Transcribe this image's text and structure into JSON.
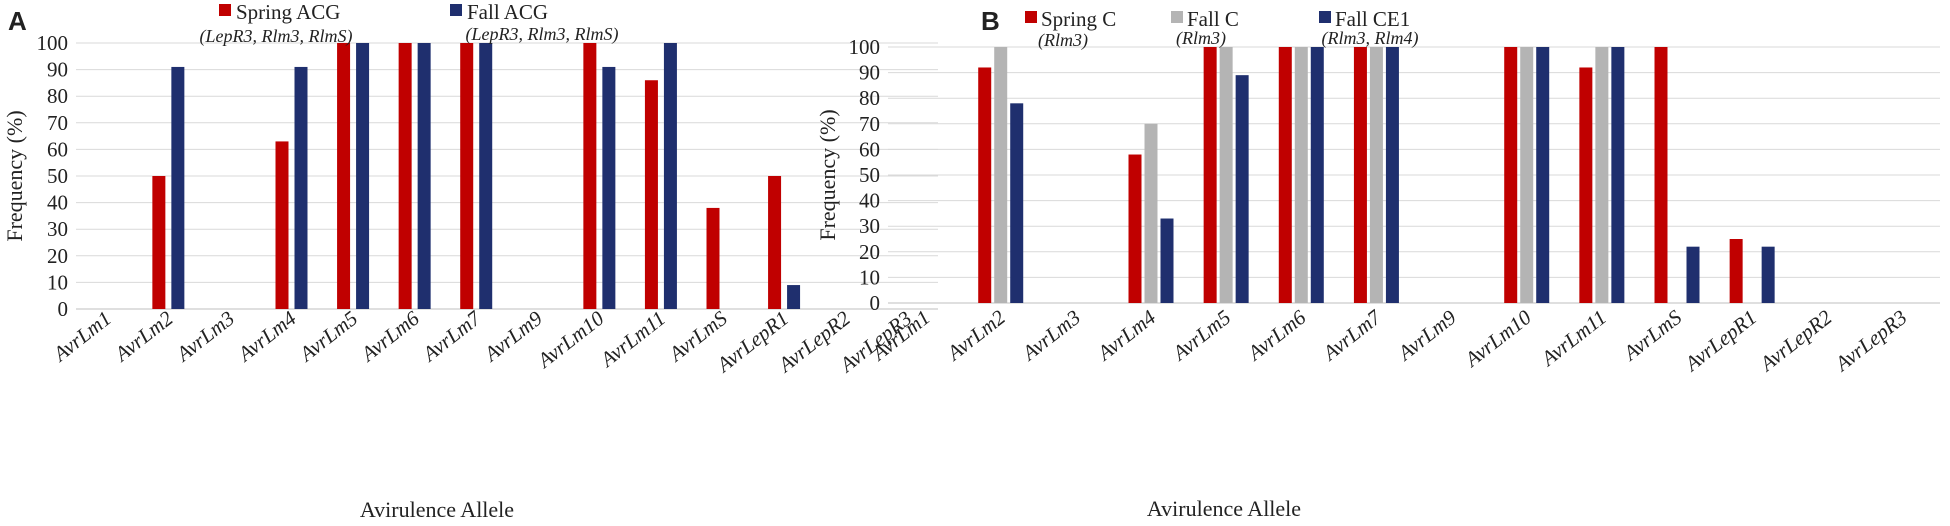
{
  "colors": {
    "spring": "#c00000",
    "fall": "#1f2f6e",
    "fall_c": "#b4b4b4",
    "grid": "#d9d9d9",
    "axis": "#bfbfbf"
  },
  "chart_data": [
    {
      "panel": "A",
      "type": "bar",
      "title": "",
      "xlabel": "Avirulence Allele",
      "ylabel": "Frequency (%)",
      "ylim": [
        0,
        100
      ],
      "yticks": [
        "0",
        "10",
        "20",
        "30",
        "40",
        "50",
        "60",
        "70",
        "80",
        "90",
        "100"
      ],
      "categories": [
        "AvrLm1",
        "AvrLm2",
        "AvrLm3",
        "AvrLm4",
        "AvrLm5",
        "AvrLm6",
        "AvrLm7",
        "AvrLm9",
        "AvrLm10",
        "AvrLm11",
        "AvrLmS",
        "AvrLepR1",
        "AvrLepR2",
        "AvrLepR3"
      ],
      "legend_position": "top",
      "series": [
        {
          "name": "Spring ACG",
          "subtitle": "(LepR3, Rlm3, RlmS)",
          "color_key": "spring",
          "values": [
            0,
            50,
            0,
            63,
            100,
            100,
            100,
            0,
            100,
            86,
            38,
            50,
            0,
            0
          ]
        },
        {
          "name": "Fall ACG",
          "subtitle": "(LepR3, Rlm3, RlmS)",
          "color_key": "fall",
          "values": [
            0,
            91,
            0,
            91,
            100,
            100,
            100,
            0,
            91,
            100,
            0,
            9,
            0,
            0
          ]
        }
      ]
    },
    {
      "panel": "B",
      "type": "bar",
      "title": "",
      "xlabel": "Avirulence Allele",
      "ylabel": "Frequency (%)",
      "ylim": [
        0,
        100
      ],
      "yticks": [
        "0",
        "10",
        "20",
        "30",
        "40",
        "50",
        "60",
        "70",
        "80",
        "90",
        "100"
      ],
      "categories": [
        "AvrLm1",
        "AvrLm2",
        "AvrLm3",
        "AvrLm4",
        "AvrLm5",
        "AvrLm6",
        "AvrLm7",
        "AvrLm9",
        "AvrLm10",
        "AvrLm11",
        "AvrLmS",
        "AvrLepR1",
        "AvrLepR2",
        "AvrLepR3"
      ],
      "legend_position": "top",
      "series": [
        {
          "name": "Spring C",
          "subtitle": "(Rlm3)",
          "color_key": "spring",
          "values": [
            0,
            92,
            0,
            58,
            100,
            100,
            100,
            0,
            100,
            92,
            100,
            25,
            0,
            0
          ]
        },
        {
          "name": "Fall C",
          "subtitle": "(Rlm3)",
          "color_key": "fall_c",
          "values": [
            0,
            100,
            0,
            70,
            100,
            100,
            100,
            0,
            100,
            100,
            0,
            0,
            0,
            0
          ]
        },
        {
          "name": "Fall CE1",
          "subtitle": "(Rlm3, Rlm4)",
          "color_key": "fall",
          "values": [
            0,
            78,
            0,
            33,
            89,
            100,
            100,
            0,
            100,
            100,
            22,
            22,
            0,
            0
          ]
        }
      ]
    }
  ]
}
